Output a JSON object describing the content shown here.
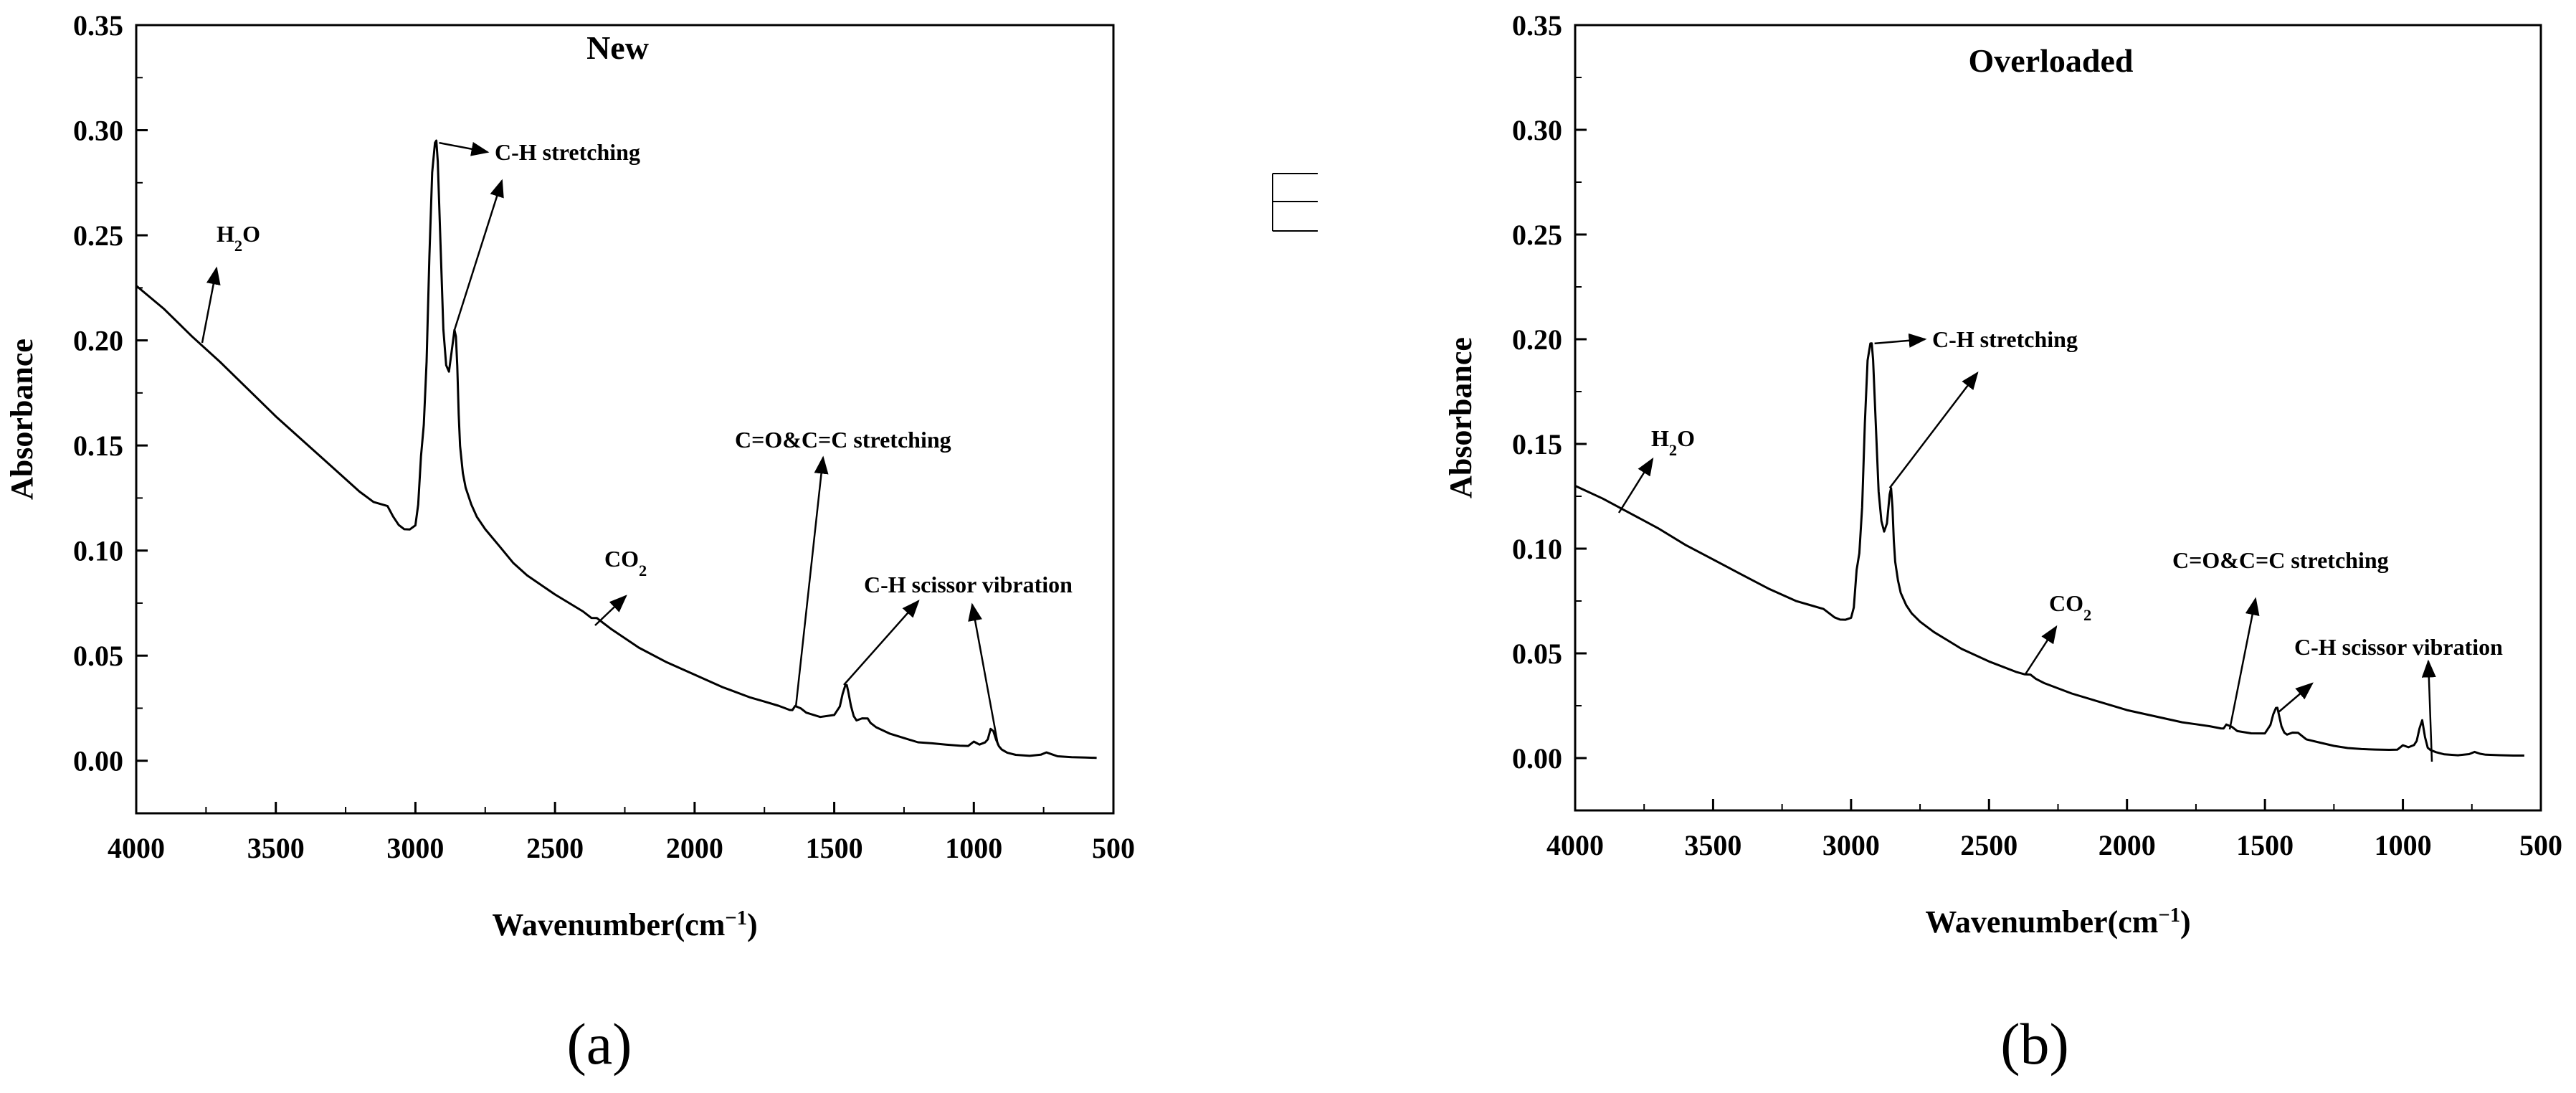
{
  "chart_data": [
    {
      "type": "line",
      "panel_label": "(a)",
      "title": "New",
      "xlabel": "Wavenumber(cm",
      "xlabel_sup": "−1",
      "xlabel_end": ")",
      "ylabel": "Absorbance",
      "xlim": [
        4000,
        500
      ],
      "ylim": [
        -0.025,
        0.35
      ],
      "x_ticks": [
        "4000",
        "3500",
        "3000",
        "2500",
        "2000",
        "1500",
        "1000",
        "500"
      ],
      "y_ticks": [
        "0.00",
        "0.05",
        "0.10",
        "0.15",
        "0.20",
        "0.25",
        "0.30",
        "0.35"
      ],
      "series": [
        {
          "x": [
            4000,
            3900,
            3800,
            3700,
            3600,
            3500,
            3400,
            3300,
            3200,
            3150,
            3100,
            3080,
            3060,
            3040,
            3020,
            3000,
            2990,
            2980,
            2970,
            2960,
            2950,
            2940,
            2930,
            2925,
            2920,
            2910,
            2900,
            2890,
            2880,
            2870,
            2860,
            2855,
            2850,
            2845,
            2840,
            2830,
            2820,
            2800,
            2780,
            2750,
            2700,
            2650,
            2600,
            2500,
            2400,
            2370,
            2350,
            2330,
            2300,
            2200,
            2100,
            2000,
            1900,
            1800,
            1750,
            1700,
            1680,
            1660,
            1650,
            1640,
            1620,
            1600,
            1550,
            1500,
            1480,
            1470,
            1460,
            1455,
            1450,
            1440,
            1430,
            1420,
            1400,
            1380,
            1370,
            1350,
            1300,
            1250,
            1200,
            1150,
            1100,
            1050,
            1020,
            1000,
            980,
            960,
            950,
            940,
            930,
            920,
            910,
            900,
            880,
            850,
            800,
            760,
            740,
            720,
            700,
            650,
            600,
            560
          ],
          "y": [
            0.226,
            0.215,
            0.202,
            0.19,
            0.177,
            0.164,
            0.152,
            0.14,
            0.128,
            0.123,
            0.121,
            0.116,
            0.112,
            0.11,
            0.11,
            0.112,
            0.122,
            0.145,
            0.16,
            0.19,
            0.24,
            0.28,
            0.294,
            0.295,
            0.285,
            0.245,
            0.205,
            0.188,
            0.185,
            0.195,
            0.205,
            0.202,
            0.188,
            0.165,
            0.15,
            0.137,
            0.13,
            0.122,
            0.116,
            0.11,
            0.102,
            0.094,
            0.088,
            0.079,
            0.071,
            0.068,
            0.068,
            0.066,
            0.063,
            0.054,
            0.047,
            0.041,
            0.035,
            0.03,
            0.028,
            0.026,
            0.025,
            0.024,
            0.024,
            0.026,
            0.025,
            0.023,
            0.021,
            0.022,
            0.026,
            0.032,
            0.036,
            0.036,
            0.033,
            0.026,
            0.021,
            0.019,
            0.02,
            0.02,
            0.018,
            0.016,
            0.013,
            0.011,
            0.009,
            0.0085,
            0.0078,
            0.0072,
            0.007,
            0.009,
            0.0075,
            0.0085,
            0.01,
            0.015,
            0.014,
            0.01,
            0.007,
            0.0055,
            0.004,
            0.003,
            0.0025,
            0.003,
            0.004,
            0.003,
            0.002,
            0.0015,
            0.0013,
            0.0012
          ]
        }
      ],
      "annotations": [
        {
          "label": "H",
          "sub": "2",
          "tail": "O",
          "x": 3760,
          "y": 0.199
        },
        {
          "label": "C-H stretching",
          "sub": "",
          "tail": "",
          "x": 2915,
          "y": 0.294
        },
        {
          "label": "CO",
          "sub": "2",
          "tail": "",
          "x": 2360,
          "y": 0.068
        },
        {
          "label": "C=O&C=C stretching",
          "sub": "",
          "tail": "",
          "x": 1640,
          "y": 0.024
        },
        {
          "label": "C-H scissor vibration",
          "sub": "",
          "tail": "",
          "x": 1460,
          "y": 0.036
        }
      ]
    },
    {
      "type": "line",
      "panel_label": "(b)",
      "title": "Overloaded",
      "xlabel": "Wavenumber(cm",
      "xlabel_sup": "−1",
      "xlabel_end": ")",
      "ylabel": "Absorbance",
      "xlim": [
        4000,
        500
      ],
      "ylim": [
        -0.025,
        0.35
      ],
      "x_ticks": [
        "4000",
        "3500",
        "3000",
        "2500",
        "2000",
        "1500",
        "1000",
        "500"
      ],
      "y_ticks": [
        "0.00",
        "0.05",
        "0.10",
        "0.15",
        "0.20",
        "0.25",
        "0.30",
        "0.35"
      ],
      "series": [
        {
          "x": [
            4000,
            3900,
            3800,
            3700,
            3600,
            3500,
            3400,
            3300,
            3200,
            3150,
            3100,
            3080,
            3060,
            3040,
            3020,
            3000,
            2990,
            2980,
            2970,
            2960,
            2950,
            2940,
            2930,
            2925,
            2920,
            2910,
            2900,
            2890,
            2880,
            2870,
            2860,
            2855,
            2850,
            2845,
            2840,
            2830,
            2820,
            2800,
            2780,
            2750,
            2700,
            2650,
            2600,
            2500,
            2400,
            2370,
            2350,
            2330,
            2300,
            2200,
            2100,
            2000,
            1900,
            1800,
            1750,
            1700,
            1680,
            1660,
            1650,
            1640,
            1620,
            1600,
            1550,
            1500,
            1480,
            1470,
            1460,
            1455,
            1450,
            1440,
            1430,
            1420,
            1400,
            1380,
            1370,
            1350,
            1300,
            1250,
            1200,
            1150,
            1100,
            1050,
            1020,
            1000,
            980,
            960,
            950,
            940,
            930,
            920,
            910,
            900,
            880,
            850,
            800,
            760,
            740,
            720,
            700,
            650,
            600,
            560
          ],
          "y": [
            0.13,
            0.124,
            0.117,
            0.11,
            0.102,
            0.095,
            0.088,
            0.081,
            0.075,
            0.073,
            0.071,
            0.069,
            0.067,
            0.066,
            0.066,
            0.067,
            0.072,
            0.09,
            0.098,
            0.12,
            0.16,
            0.19,
            0.198,
            0.198,
            0.19,
            0.158,
            0.127,
            0.113,
            0.108,
            0.112,
            0.126,
            0.129,
            0.12,
            0.104,
            0.094,
            0.085,
            0.079,
            0.073,
            0.069,
            0.065,
            0.06,
            0.056,
            0.052,
            0.046,
            0.041,
            0.04,
            0.04,
            0.038,
            0.036,
            0.031,
            0.027,
            0.023,
            0.02,
            0.017,
            0.016,
            0.015,
            0.0145,
            0.014,
            0.014,
            0.016,
            0.015,
            0.013,
            0.012,
            0.012,
            0.016,
            0.021,
            0.024,
            0.024,
            0.021,
            0.015,
            0.012,
            0.011,
            0.012,
            0.012,
            0.011,
            0.009,
            0.0075,
            0.006,
            0.005,
            0.0045,
            0.0042,
            0.004,
            0.004,
            0.006,
            0.005,
            0.006,
            0.008,
            0.014,
            0.018,
            0.01,
            0.005,
            0.004,
            0.003,
            0.002,
            0.0015,
            0.002,
            0.003,
            0.002,
            0.0015,
            0.0012,
            0.001,
            0.001
          ]
        }
      ],
      "annotations": [
        {
          "label": "H",
          "sub": "2",
          "tail": "O",
          "x": 3840,
          "y": 0.119
        },
        {
          "label": "C-H stretching",
          "sub": "",
          "tail": "",
          "x": 2915,
          "y": 0.198
        },
        {
          "label": "CO",
          "sub": "2",
          "tail": "",
          "x": 2380,
          "y": 0.04
        },
        {
          "label": "C=O&C=C stretching",
          "sub": "",
          "tail": "",
          "x": 1640,
          "y": 0.014
        },
        {
          "label": "C-H scissor vibration",
          "sub": "",
          "tail": "",
          "x": 1460,
          "y": 0.024
        }
      ]
    }
  ],
  "colors": {
    "line": "#000000",
    "axis": "#000000",
    "background": "#ffffff"
  }
}
